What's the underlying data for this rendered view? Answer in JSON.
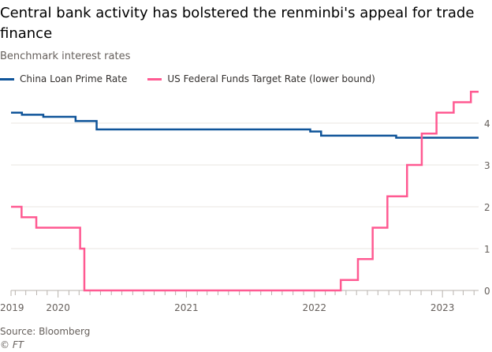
{
  "title": "Central bank activity has bolstered the renminbi's appeal for trade finance",
  "subtitle": "Benchmark interest rates",
  "source": "Source: Bloomberg",
  "copyright": "© FT",
  "chart_data": {
    "type": "line",
    "step": true,
    "xlim": [
      "2019-08-20",
      "2023-04-14"
    ],
    "ylim": [
      0,
      4.8
    ],
    "yticks": [
      0,
      1,
      2,
      3,
      4
    ],
    "xticks": [
      {
        "date": "2019-08-20",
        "label": "2019"
      },
      {
        "date": "2020-01-01",
        "label": "2020"
      },
      {
        "date": "2021-01-01",
        "label": "2021"
      },
      {
        "date": "2022-01-01",
        "label": "2022"
      },
      {
        "date": "2023-01-01",
        "label": "2023"
      }
    ],
    "grid": true,
    "legend": "top-left",
    "series": [
      {
        "name": "China Loan Prime Rate",
        "color": "#0f5499",
        "points": [
          [
            "2019-08-20",
            4.25
          ],
          [
            "2019-09-20",
            4.2
          ],
          [
            "2019-11-20",
            4.15
          ],
          [
            "2020-02-20",
            4.05
          ],
          [
            "2020-04-20",
            3.85
          ],
          [
            "2021-12-20",
            3.8
          ],
          [
            "2022-01-20",
            3.7
          ],
          [
            "2022-08-22",
            3.65
          ],
          [
            "2023-04-14",
            3.65
          ]
        ]
      },
      {
        "name": "US Federal Funds Target Rate (lower bound)",
        "color": "#ff5a92",
        "points": [
          [
            "2019-08-20",
            2.0
          ],
          [
            "2019-09-19",
            1.75
          ],
          [
            "2019-10-31",
            1.5
          ],
          [
            "2020-03-04",
            1.0
          ],
          [
            "2020-03-16",
            0.0
          ],
          [
            "2022-03-17",
            0.25
          ],
          [
            "2022-05-05",
            0.75
          ],
          [
            "2022-06-16",
            1.5
          ],
          [
            "2022-07-28",
            2.25
          ],
          [
            "2022-09-22",
            3.0
          ],
          [
            "2022-11-03",
            3.75
          ],
          [
            "2022-12-15",
            4.25
          ],
          [
            "2023-02-02",
            4.5
          ],
          [
            "2023-03-23",
            4.75
          ],
          [
            "2023-04-14",
            4.75
          ]
        ]
      }
    ]
  }
}
